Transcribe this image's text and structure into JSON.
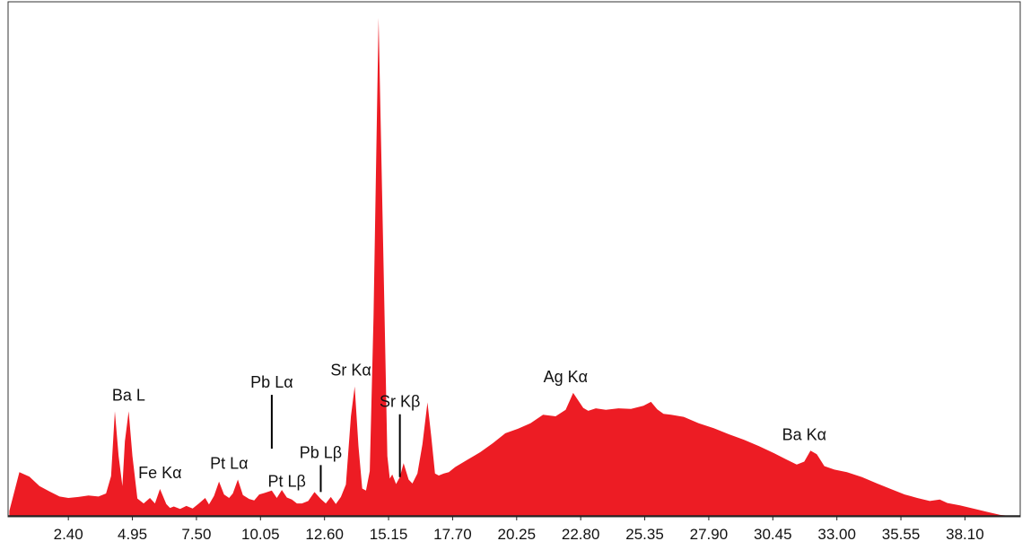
{
  "chart_data": {
    "type": "area",
    "title": "",
    "xlabel": "",
    "ylabel": "",
    "xlim": [
      0.0,
      40.3
    ],
    "ylim": [
      0,
      100
    ],
    "x_ticks": [
      {
        "value": 2.4,
        "label": "2.40"
      },
      {
        "value": 4.95,
        "label": "4.95"
      },
      {
        "value": 7.5,
        "label": "7.50"
      },
      {
        "value": 10.05,
        "label": "10.05"
      },
      {
        "value": 12.6,
        "label": "12.60"
      },
      {
        "value": 15.15,
        "label": "15.15"
      },
      {
        "value": 17.7,
        "label": "17.70"
      },
      {
        "value": 20.25,
        "label": "20.25"
      },
      {
        "value": 22.8,
        "label": "22.80"
      },
      {
        "value": 25.35,
        "label": "25.35"
      },
      {
        "value": 27.9,
        "label": "27.90"
      },
      {
        "value": 30.45,
        "label": "30.45"
      },
      {
        "value": 33.0,
        "label": "33.00"
      },
      {
        "value": 35.55,
        "label": "35.55"
      },
      {
        "value": 38.1,
        "label": "38.10"
      }
    ],
    "grid": false,
    "fill_color": "#ED1C24",
    "series": [
      {
        "x": [
          0.05,
          0.45,
          0.85,
          1.25,
          1.65,
          2.05,
          2.4,
          2.8,
          3.2,
          3.6,
          3.9,
          4.1,
          4.25,
          4.4,
          4.55,
          4.65,
          4.8,
          4.95,
          5.15,
          5.4,
          5.65,
          5.85,
          6.05,
          6.3,
          6.45,
          6.6,
          6.85,
          7.1,
          7.35,
          7.6,
          7.85,
          8.0,
          8.2,
          8.4,
          8.6,
          8.8,
          8.95,
          9.15,
          9.35,
          9.6,
          9.8,
          10.0,
          10.2,
          10.5,
          10.7,
          10.9,
          11.1,
          11.3,
          11.5,
          11.7,
          11.95,
          12.2,
          12.45,
          12.65,
          12.85,
          13.05,
          13.25,
          13.45,
          13.65,
          13.8,
          13.95,
          14.1,
          14.25,
          14.4,
          14.55,
          14.75,
          14.95,
          15.1,
          15.2,
          15.3,
          15.45,
          15.6,
          15.75,
          15.95,
          16.1,
          16.3,
          16.5,
          16.7,
          16.85,
          17.0,
          17.15,
          17.35,
          17.55,
          17.8,
          18.3,
          18.8,
          19.3,
          19.8,
          20.3,
          20.8,
          21.3,
          21.8,
          22.2,
          22.5,
          22.7,
          22.9,
          23.1,
          23.4,
          23.8,
          24.3,
          24.8,
          25.3,
          25.6,
          25.85,
          26.1,
          26.4,
          26.9,
          27.5,
          28.1,
          28.7,
          29.3,
          29.9,
          30.5,
          31.0,
          31.4,
          31.7,
          31.95,
          32.2,
          32.5,
          32.9,
          33.4,
          34.0,
          34.6,
          35.2,
          35.7,
          36.2,
          36.7,
          37.1,
          37.4,
          37.9,
          38.5,
          39.0,
          39.5,
          39.9
        ],
        "y": [
          1,
          8.8,
          7.9,
          6.0,
          4.9,
          3.9,
          3.6,
          3.8,
          4.1,
          3.9,
          4.5,
          8,
          21,
          12,
          6,
          15,
          21,
          12,
          3.5,
          2.5,
          3.6,
          2.5,
          5.4,
          2.4,
          1.6,
          1.9,
          1.4,
          2.0,
          1.5,
          2.5,
          3.6,
          2.3,
          4.0,
          6.9,
          4.3,
          3.6,
          4.5,
          7.3,
          4.2,
          3.4,
          3.1,
          4.3,
          4.6,
          5.1,
          3.6,
          5.2,
          3.7,
          3.3,
          2.5,
          2.5,
          3.0,
          4.8,
          3.4,
          2.5,
          3.8,
          2.4,
          3.8,
          6.3,
          20,
          26,
          14,
          5.5,
          5.1,
          9,
          40,
          100,
          50,
          12,
          7.5,
          8.3,
          6.4,
          7.8,
          10.6,
          7.3,
          6.5,
          8.5,
          14.4,
          22.8,
          16,
          8.5,
          8.1,
          8.5,
          8.8,
          9.8,
          11.3,
          12.8,
          14.6,
          16.6,
          17.5,
          18.6,
          20.3,
          20.0,
          21.3,
          24.7,
          23.2,
          21.7,
          21.1,
          21.6,
          21.3,
          21.6,
          21.5,
          22.1,
          22.9,
          21.4,
          20.5,
          20.3,
          19.9,
          18.6,
          17.6,
          16.4,
          15.3,
          14.0,
          12.6,
          11.3,
          10.3,
          10.9,
          13.1,
          12.4,
          10.0,
          9.3,
          8.8,
          7.8,
          6.5,
          5.3,
          4.3,
          3.6,
          3.0,
          3.3,
          2.6,
          2.1,
          1.4,
          0.8,
          0.2,
          0
        ]
      }
    ],
    "annotations": [
      {
        "text": "Ba L",
        "x": 4.8,
        "y": 21
      },
      {
        "text": "Fe Kα",
        "x": 6.05,
        "y": 5.4
      },
      {
        "text": "Pt Lα",
        "x": 8.8,
        "y": 7.3
      },
      {
        "text": "Pb Lα",
        "x": 10.5,
        "y": 13.5
      },
      {
        "text": "Pt Lβ",
        "x": 11.1,
        "y": 3.7
      },
      {
        "text": "Pb Lβ",
        "x": 12.45,
        "y": 4.8
      },
      {
        "text": "Sr Kα",
        "x": 13.65,
        "y": 26
      },
      {
        "text": "Sr Kβ",
        "x": 15.6,
        "y": 7.8
      },
      {
        "text": "Ag Kα",
        "x": 22.2,
        "y": 24.7
      },
      {
        "text": "Ba Kα",
        "x": 31.7,
        "y": 13.1
      }
    ]
  }
}
